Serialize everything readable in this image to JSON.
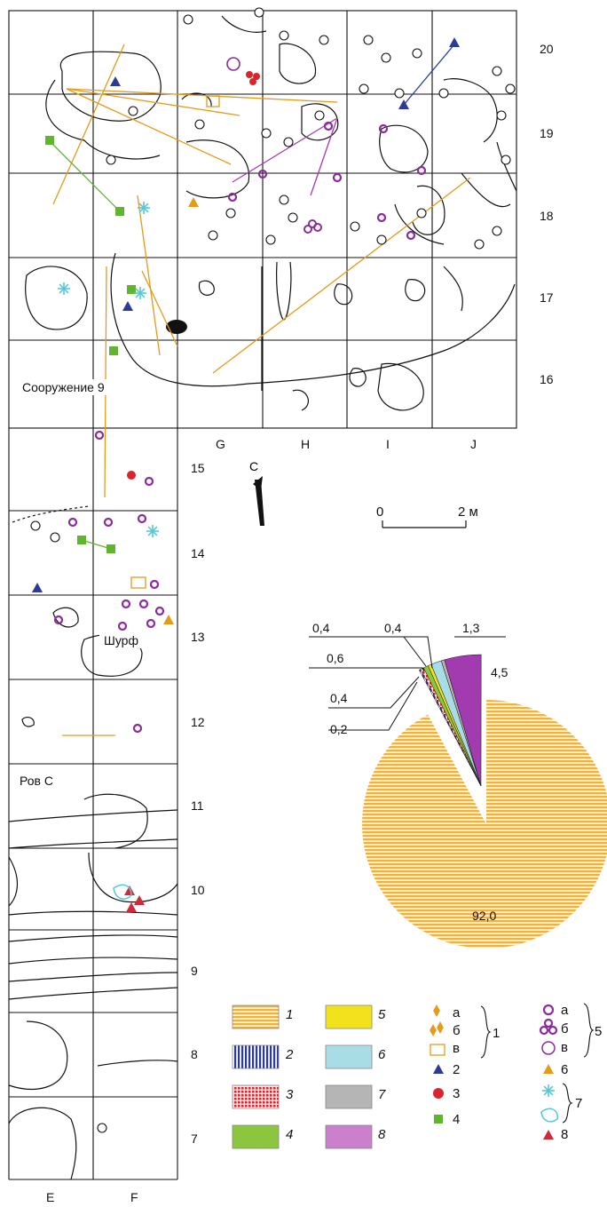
{
  "plan": {
    "grid_columns_upper": [
      "G",
      "H",
      "I",
      "J"
    ],
    "grid_columns_lower": [
      "E",
      "F"
    ],
    "grid_rows_upper": [
      "20",
      "19",
      "18",
      "17",
      "16"
    ],
    "grid_rows_lower": [
      "15",
      "14",
      "13",
      "12",
      "11",
      "10",
      "9",
      "8",
      "7"
    ],
    "labels": {
      "structure": "Сооружение 9",
      "pit": "Шурф",
      "ditch": "Ров С"
    },
    "north_label": "С",
    "scale": {
      "start": "0",
      "end": "2 м"
    }
  },
  "chart_data": {
    "type": "pie",
    "title": "",
    "slices": [
      {
        "label": "92,0",
        "value": 92.0,
        "legend_key": "1",
        "color": "#f2b13a"
      },
      {
        "label": "0,2",
        "value": 0.2,
        "legend_key": "2",
        "color": "#2d3a96"
      },
      {
        "label": "0,4",
        "value": 0.4,
        "legend_key": "3",
        "color": "#d9262c"
      },
      {
        "label": "0,6",
        "value": 0.6,
        "legend_key": "4",
        "color": "#8cc63f"
      },
      {
        "label": "0,4",
        "value": 0.4,
        "legend_key": "5",
        "color": "#f2e21b"
      },
      {
        "label": "1,3",
        "value": 1.3,
        "legend_key": "6",
        "color": "#a9dde6"
      },
      {
        "label": "0,4",
        "value": 0.4,
        "legend_key": "7",
        "color": "#b5b5b5"
      },
      {
        "label": "4,5",
        "value": 4.5,
        "legend_key": "8",
        "color": "#a23bb0"
      }
    ]
  },
  "legend": {
    "swatches": [
      {
        "num": "1",
        "color": "#f2b13a",
        "pattern": "horizontal-lines"
      },
      {
        "num": "2",
        "color": "#2d3a96",
        "pattern": "vertical-lines"
      },
      {
        "num": "3",
        "color": "#d9262c",
        "pattern": "grid"
      },
      {
        "num": "4",
        "color": "#8cc63f",
        "pattern": "solid"
      },
      {
        "num": "5",
        "color": "#f2e21b",
        "pattern": "solid"
      },
      {
        "num": "6",
        "color": "#a9dde6",
        "pattern": "solid"
      },
      {
        "num": "7",
        "color": "#b5b5b5",
        "pattern": "solid"
      },
      {
        "num": "8",
        "color": "#cc7fcc",
        "pattern": "solid"
      }
    ],
    "symbols_left": {
      "sub_a": "а",
      "sub_b": "б",
      "sub_v": "в",
      "group_1": "1",
      "s2": "2",
      "s3": "3",
      "s4": "4"
    },
    "symbols_right": {
      "sub_a": "а",
      "sub_b": "б",
      "sub_v": "в",
      "group_5": "5",
      "s6": "6",
      "group_7": "7",
      "s8": "8"
    },
    "colors": {
      "find": "#e59a1a",
      "triangle": "#2d3a96",
      "red": "#d9262c",
      "green": "#5fb52f",
      "purple": "#8a2c9a",
      "cyan": "#56c8d8",
      "tri8": "#cf2a3a"
    }
  }
}
